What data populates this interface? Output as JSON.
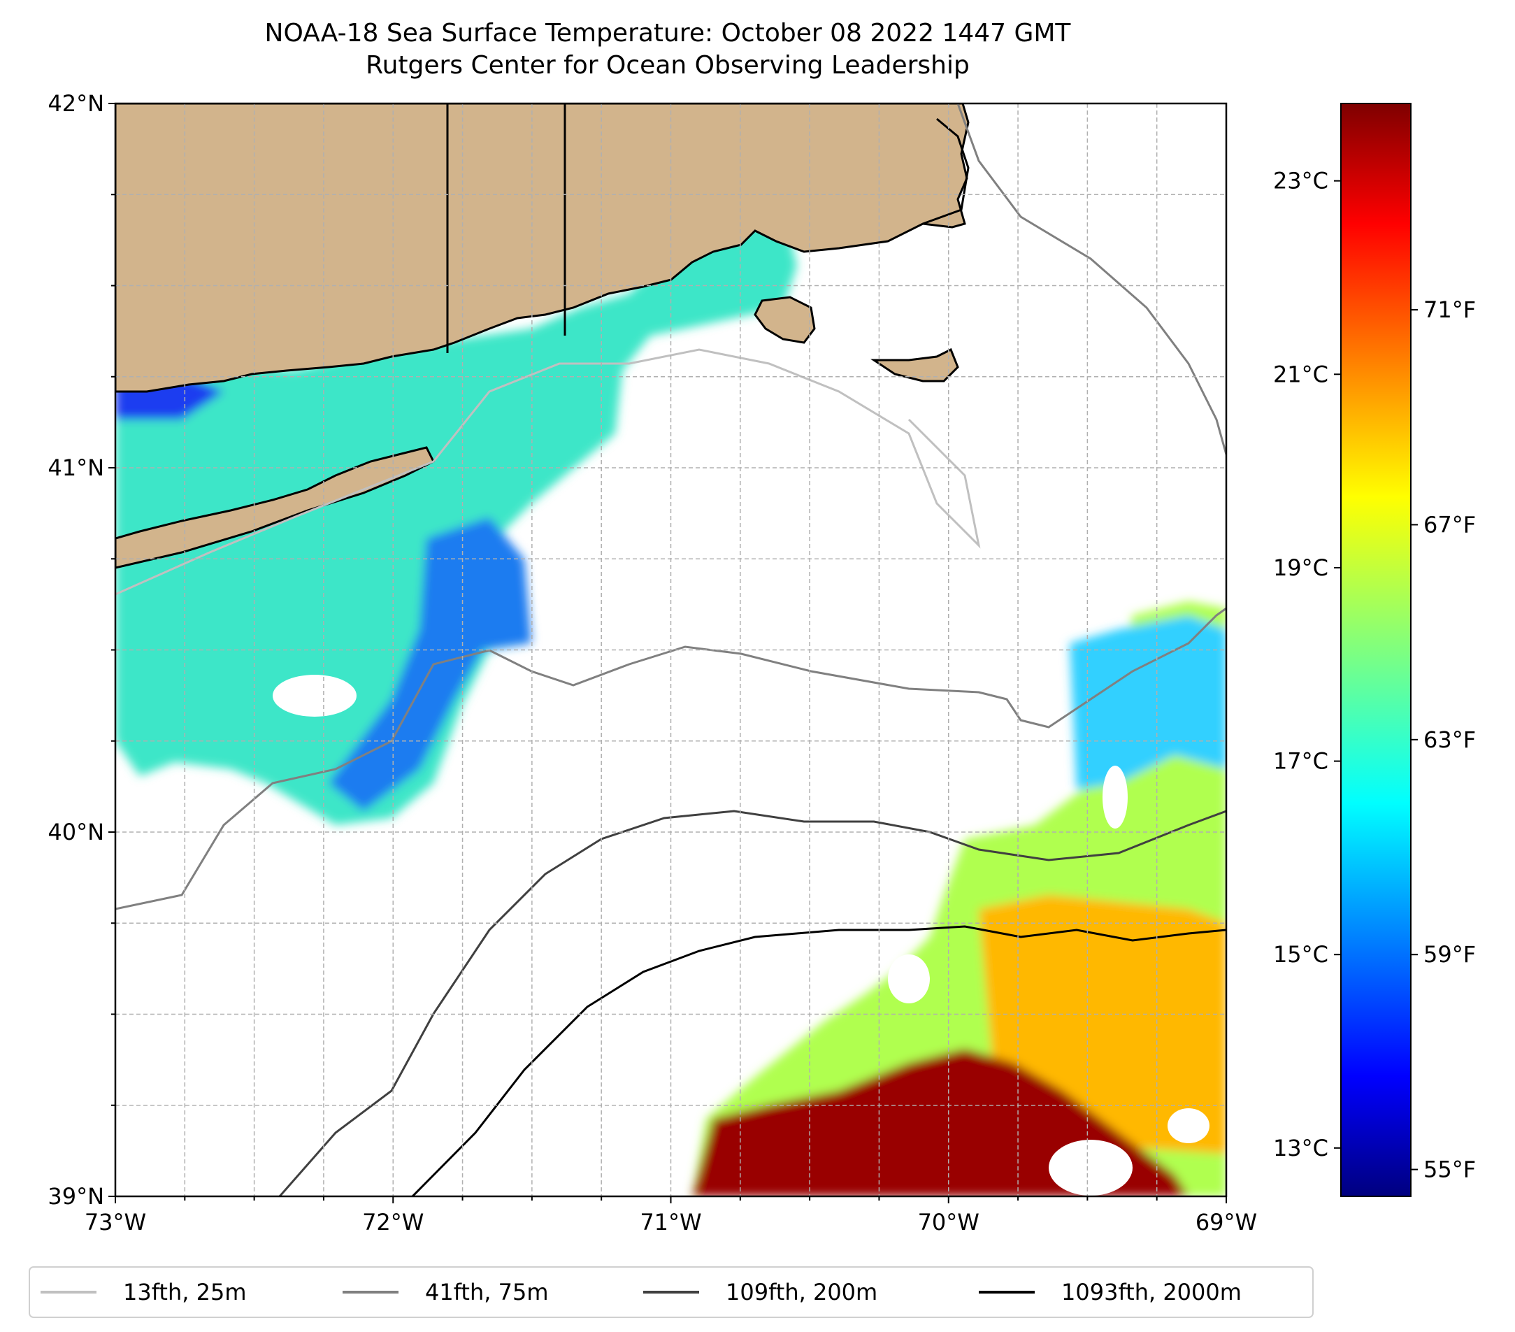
{
  "title": "NOAA-18 Sea Surface Temperature: October 08 2022 1447 GMT",
  "subtitle": "Rutgers Center for Ocean Observing Leadership",
  "map": {
    "lon_range": [
      -73,
      -69
    ],
    "lat_range": [
      39,
      42
    ],
    "x_ticks": [
      {
        "lon": -73,
        "label": "73°W"
      },
      {
        "lon": -72,
        "label": "72°W"
      },
      {
        "lon": -71,
        "label": "71°W"
      },
      {
        "lon": -70,
        "label": "70°W"
      },
      {
        "lon": -69,
        "label": "69°W"
      }
    ],
    "y_ticks": [
      {
        "lat": 42,
        "label": "42°N"
      },
      {
        "lat": 41,
        "label": "41°N"
      },
      {
        "lat": 40,
        "label": "40°N"
      },
      {
        "lat": 39,
        "label": "39°N"
      }
    ],
    "gridlines": true,
    "land_color": "#d2b48c",
    "colormap": "jet"
  },
  "colorbar": {
    "range_c": [
      12.5,
      23.8
    ],
    "celsius_ticks": [
      {
        "value": 23,
        "label": "23°C"
      },
      {
        "value": 21,
        "label": "21°C"
      },
      {
        "value": 19,
        "label": "19°C"
      },
      {
        "value": 17,
        "label": "17°C"
      },
      {
        "value": 15,
        "label": "15°C"
      },
      {
        "value": 13,
        "label": "13°C"
      }
    ],
    "fahrenheit_ticks": [
      {
        "value": 71,
        "label": "71°F"
      },
      {
        "value": 67,
        "label": "67°F"
      },
      {
        "value": 63,
        "label": "63°F"
      },
      {
        "value": 59,
        "label": "59°F"
      },
      {
        "value": 55,
        "label": "55°F"
      }
    ]
  },
  "legend": {
    "position": "bottom",
    "items": [
      {
        "label": "13fth, 25m",
        "color": "#c0c0c0"
      },
      {
        "label": "41fth, 75m",
        "color": "#808080"
      },
      {
        "label": "109fth, 200m",
        "color": "#404040"
      },
      {
        "label": "1093fth, 2000m",
        "color": "#000000"
      }
    ]
  }
}
